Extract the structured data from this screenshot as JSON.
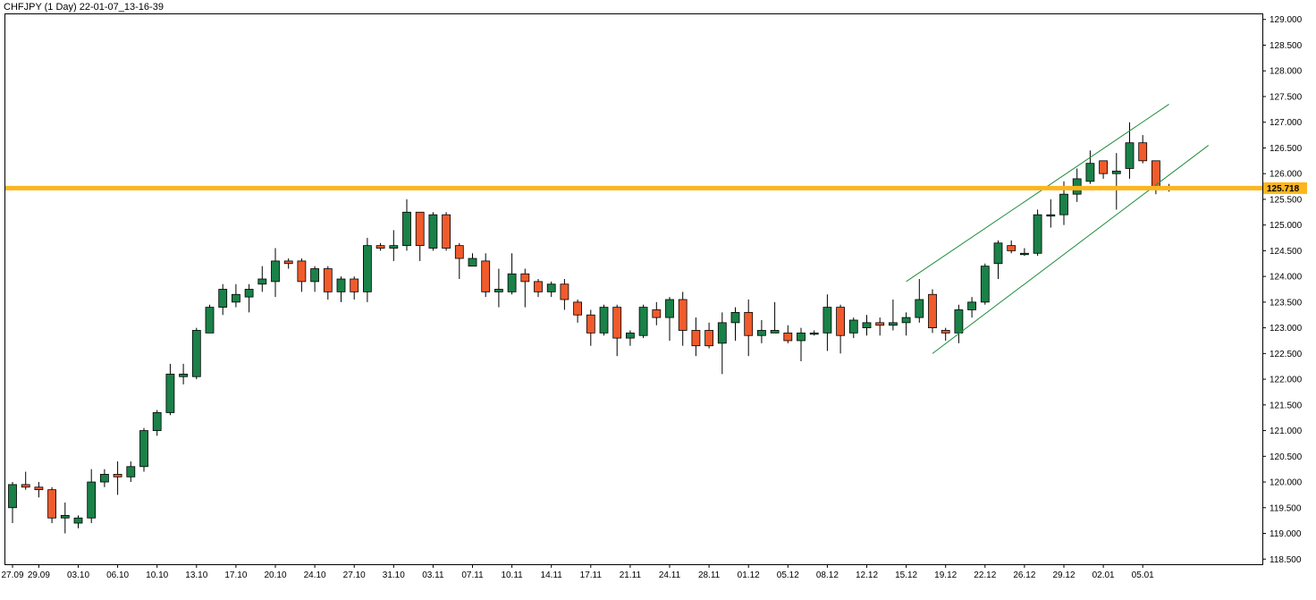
{
  "chart_data": {
    "type": "candlestick",
    "title": "CHFJPY (1 Day) 22-01-07_13-16-39",
    "ylim": [
      118.4,
      129.1
    ],
    "y_ticks": [
      "118.500",
      "119.000",
      "119.500",
      "120.000",
      "120.500",
      "121.000",
      "121.500",
      "122.000",
      "122.500",
      "123.000",
      "123.500",
      "124.000",
      "124.500",
      "125.000",
      "125.500",
      "126.000",
      "126.500",
      "127.000",
      "127.500",
      "128.000",
      "128.500",
      "129.000"
    ],
    "x_tick_labels": [
      {
        "label": "27.09",
        "i": 0
      },
      {
        "label": "29.09",
        "i": 2
      },
      {
        "label": "03.10",
        "i": 5
      },
      {
        "label": "06.10",
        "i": 8
      },
      {
        "label": "10.10",
        "i": 11
      },
      {
        "label": "13.10",
        "i": 14
      },
      {
        "label": "17.10",
        "i": 17
      },
      {
        "label": "20.10",
        "i": 20
      },
      {
        "label": "24.10",
        "i": 23
      },
      {
        "label": "27.10",
        "i": 26
      },
      {
        "label": "31.10",
        "i": 29
      },
      {
        "label": "03.11",
        "i": 32
      },
      {
        "label": "07.11",
        "i": 35
      },
      {
        "label": "10.11",
        "i": 38
      },
      {
        "label": "14.11",
        "i": 41
      },
      {
        "label": "17.11",
        "i": 44
      },
      {
        "label": "21.11",
        "i": 47
      },
      {
        "label": "24.11",
        "i": 50
      },
      {
        "label": "28.11",
        "i": 53
      },
      {
        "label": "01.12",
        "i": 56
      },
      {
        "label": "05.12",
        "i": 59
      },
      {
        "label": "08.12",
        "i": 62
      },
      {
        "label": "12.12",
        "i": 65
      },
      {
        "label": "15.12",
        "i": 68
      },
      {
        "label": "19.12",
        "i": 71
      },
      {
        "label": "22.12",
        "i": 74
      },
      {
        "label": "26.12",
        "i": 77
      },
      {
        "label": "29.12",
        "i": 80
      },
      {
        "label": "02.01",
        "i": 83
      },
      {
        "label": "05.01",
        "i": 86
      }
    ],
    "candles": [
      [
        119.5,
        120.0,
        119.2,
        119.95
      ],
      [
        119.95,
        120.2,
        119.85,
        119.9
      ],
      [
        119.9,
        120.0,
        119.7,
        119.85
      ],
      [
        119.85,
        119.9,
        119.2,
        119.3
      ],
      [
        119.3,
        119.6,
        119.0,
        119.35
      ],
      [
        119.2,
        119.35,
        119.1,
        119.3
      ],
      [
        119.3,
        120.25,
        119.2,
        120.0
      ],
      [
        120.0,
        120.25,
        119.9,
        120.15
      ],
      [
        120.15,
        120.4,
        119.75,
        120.1
      ],
      [
        120.1,
        120.4,
        120.0,
        120.3
      ],
      [
        120.3,
        121.05,
        120.2,
        121.0
      ],
      [
        121.0,
        121.4,
        120.9,
        121.35
      ],
      [
        121.35,
        122.3,
        121.3,
        122.1
      ],
      [
        122.05,
        122.3,
        121.9,
        122.1
      ],
      [
        122.05,
        123.0,
        122.0,
        122.95
      ],
      [
        122.9,
        123.45,
        122.9,
        123.4
      ],
      [
        123.4,
        123.85,
        123.25,
        123.75
      ],
      [
        123.5,
        123.85,
        123.4,
        123.65
      ],
      [
        123.6,
        123.85,
        123.3,
        123.75
      ],
      [
        123.85,
        124.2,
        123.7,
        123.95
      ],
      [
        123.9,
        124.55,
        123.6,
        124.3
      ],
      [
        124.3,
        124.35,
        124.15,
        124.25
      ],
      [
        124.3,
        124.35,
        123.7,
        123.9
      ],
      [
        123.9,
        124.2,
        123.7,
        124.15
      ],
      [
        124.15,
        124.2,
        123.55,
        123.7
      ],
      [
        123.7,
        124.0,
        123.5,
        123.95
      ],
      [
        123.95,
        124.0,
        123.55,
        123.7
      ],
      [
        123.7,
        124.75,
        123.5,
        124.6
      ],
      [
        124.6,
        124.65,
        124.5,
        124.55
      ],
      [
        124.55,
        124.9,
        124.3,
        124.6
      ],
      [
        124.6,
        125.5,
        124.5,
        125.25
      ],
      [
        125.25,
        125.25,
        124.3,
        124.6
      ],
      [
        124.55,
        125.25,
        124.5,
        125.2
      ],
      [
        125.2,
        125.25,
        124.5,
        124.55
      ],
      [
        124.6,
        124.65,
        123.95,
        124.35
      ],
      [
        124.2,
        124.45,
        124.2,
        124.35
      ],
      [
        124.3,
        124.45,
        123.6,
        123.7
      ],
      [
        123.7,
        124.15,
        123.4,
        123.75
      ],
      [
        123.7,
        124.45,
        123.65,
        124.05
      ],
      [
        124.05,
        124.15,
        123.4,
        123.9
      ],
      [
        123.9,
        123.95,
        123.6,
        123.7
      ],
      [
        123.7,
        123.9,
        123.6,
        123.85
      ],
      [
        123.85,
        123.95,
        123.35,
        123.55
      ],
      [
        123.5,
        123.55,
        123.1,
        123.25
      ],
      [
        123.25,
        123.35,
        122.65,
        122.9
      ],
      [
        122.9,
        123.45,
        122.85,
        123.4
      ],
      [
        123.4,
        123.45,
        122.45,
        122.8
      ],
      [
        122.8,
        122.95,
        122.65,
        122.9
      ],
      [
        122.85,
        123.45,
        122.8,
        123.4
      ],
      [
        123.35,
        123.5,
        123.05,
        123.2
      ],
      [
        123.2,
        123.6,
        122.75,
        123.55
      ],
      [
        123.55,
        123.7,
        122.65,
        122.95
      ],
      [
        122.95,
        123.2,
        122.45,
        122.65
      ],
      [
        122.95,
        123.1,
        122.6,
        122.65
      ],
      [
        122.7,
        123.3,
        122.1,
        123.1
      ],
      [
        123.1,
        123.4,
        122.75,
        123.3
      ],
      [
        123.3,
        123.55,
        122.45,
        122.85
      ],
      [
        122.85,
        123.15,
        122.7,
        122.95
      ],
      [
        122.9,
        123.5,
        122.9,
        122.95
      ],
      [
        122.9,
        123.05,
        122.7,
        122.75
      ],
      [
        122.75,
        123.0,
        122.35,
        122.9
      ],
      [
        122.9,
        122.95,
        122.85,
        122.9
      ],
      [
        122.9,
        123.65,
        122.55,
        123.4
      ],
      [
        123.4,
        123.45,
        122.5,
        122.85
      ],
      [
        122.9,
        123.2,
        122.8,
        123.15
      ],
      [
        123.0,
        123.25,
        122.85,
        123.1
      ],
      [
        123.1,
        123.2,
        122.85,
        123.05
      ],
      [
        123.05,
        123.55,
        122.95,
        123.1
      ],
      [
        123.1,
        123.3,
        122.85,
        123.2
      ],
      [
        123.2,
        123.95,
        123.1,
        123.55
      ],
      [
        123.65,
        123.75,
        122.9,
        123.0
      ],
      [
        122.95,
        123.0,
        122.75,
        122.9
      ],
      [
        122.9,
        123.45,
        122.7,
        123.35
      ],
      [
        123.35,
        123.6,
        123.2,
        123.5
      ],
      [
        123.5,
        124.25,
        123.45,
        124.2
      ],
      [
        124.25,
        124.7,
        123.95,
        124.65
      ],
      [
        124.6,
        124.7,
        124.45,
        124.5
      ],
      [
        124.45,
        124.55,
        124.4,
        124.45
      ],
      [
        124.45,
        125.3,
        124.4,
        125.2
      ],
      [
        125.2,
        125.5,
        124.95,
        125.2
      ],
      [
        125.2,
        125.85,
        125.0,
        125.6
      ],
      [
        125.6,
        126.1,
        125.45,
        125.9
      ],
      [
        125.85,
        126.45,
        125.8,
        126.2
      ],
      [
        126.25,
        126.25,
        125.9,
        126.0
      ],
      [
        126.0,
        126.4,
        125.3,
        126.05
      ],
      [
        126.1,
        127.0,
        125.9,
        126.6
      ],
      [
        126.6,
        126.75,
        126.2,
        126.25
      ],
      [
        126.25,
        126.25,
        125.6,
        125.75
      ],
      [
        125.75,
        125.8,
        125.65,
        125.72
      ]
    ],
    "horizontal_line": {
      "value": 125.718,
      "label": "125.718",
      "color": "#FDB51C"
    },
    "trend_channel": [
      {
        "from": [
          68,
          123.9
        ],
        "to": [
          88,
          127.35
        ]
      },
      {
        "from": [
          70,
          122.5
        ],
        "to": [
          91,
          126.55
        ]
      }
    ],
    "colors": {
      "bull": "#1A8148",
      "bear": "#F15B2C",
      "trend": "#1E8F3A",
      "line": "#FDB51C"
    }
  }
}
